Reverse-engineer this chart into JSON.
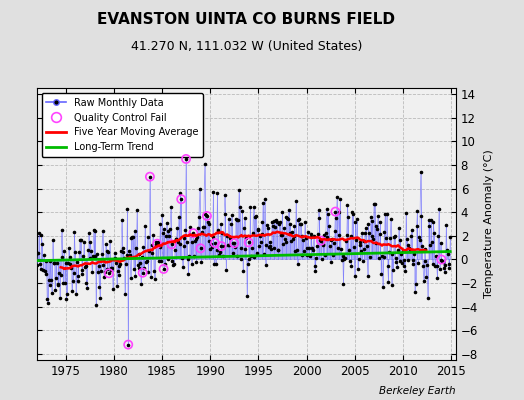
{
  "title": "EVANSTON UINTA CO BURNS FIELD",
  "subtitle": "41.270 N, 111.032 W (United States)",
  "ylabel": "Temperature Anomaly (°C)",
  "credit": "Berkeley Earth",
  "xlim": [
    1972.0,
    2015.5
  ],
  "ylim": [
    -8.5,
    14.5
  ],
  "yticks": [
    -8,
    -6,
    -4,
    -2,
    0,
    2,
    4,
    6,
    8,
    10,
    12,
    14
  ],
  "xticks": [
    1975,
    1980,
    1985,
    1990,
    1995,
    2000,
    2005,
    2010,
    2015
  ],
  "bg_color": "#e0e0e0",
  "plot_bg": "#f0f0f0",
  "line_color_raw": "#6666ff",
  "dot_color_raw": "#000000",
  "qc_color": "#ff44ff",
  "moving_avg_color": "#ff0000",
  "trend_color": "#00bb00",
  "seed": 42
}
